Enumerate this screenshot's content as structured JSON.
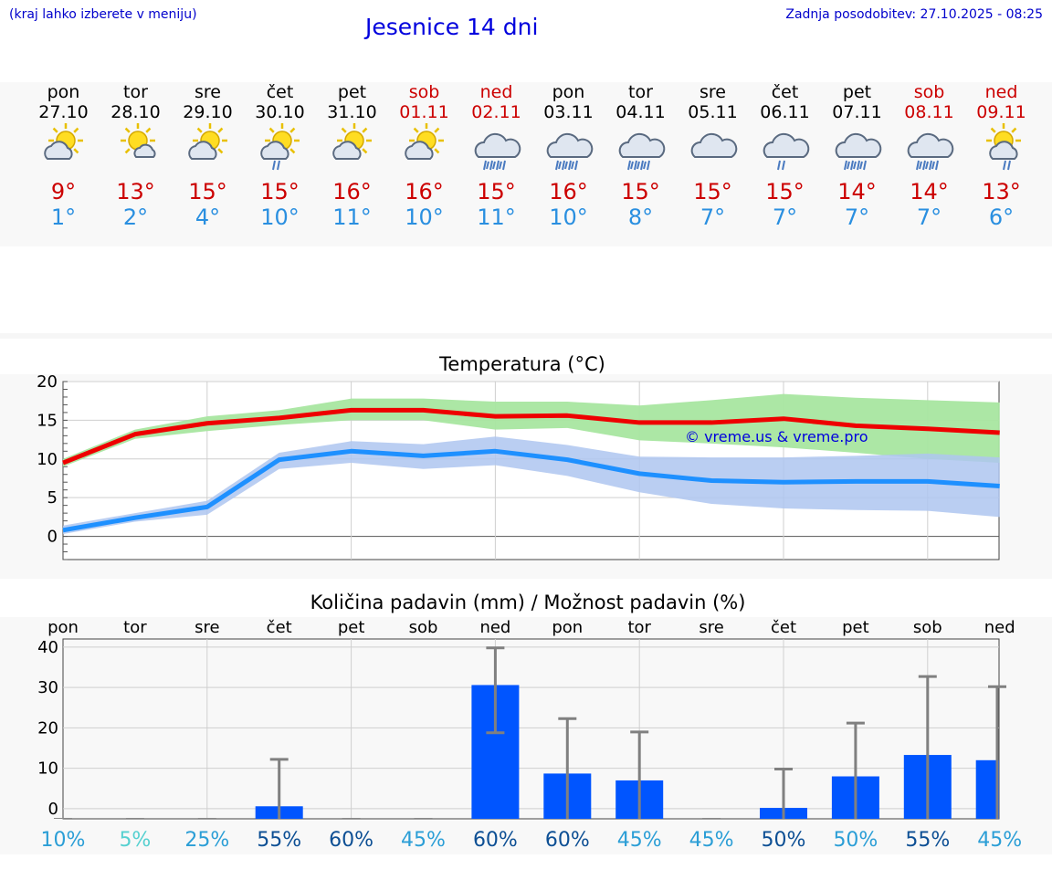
{
  "header": {
    "menu_note": "(kraj lahko izberete v meniju)",
    "title": "Jesenice 14 dni",
    "updated": "Zadnja posodobitev: 27.10.2025 - 08:25"
  },
  "colors": {
    "tmax": "#cc0000",
    "tmin": "#2a8fe0",
    "max_line": "#ee0000",
    "min_line": "#1e90ff",
    "max_band": "#a8e6a0",
    "min_band": "#aec6f0",
    "bar": "#0055ff",
    "error": "#808080",
    "title": "#0000dd"
  },
  "days": [
    {
      "name": "pon",
      "date": "27.10",
      "weekend": false,
      "icon": "sun-cloud-icon",
      "tmax": "9°",
      "tmin": "1°"
    },
    {
      "name": "tor",
      "date": "28.10",
      "weekend": false,
      "icon": "sun-small-cloud-icon",
      "tmax": "13°",
      "tmin": "2°"
    },
    {
      "name": "sre",
      "date": "29.10",
      "weekend": false,
      "icon": "sun-cloud-icon",
      "tmax": "15°",
      "tmin": "4°"
    },
    {
      "name": "čet",
      "date": "30.10",
      "weekend": false,
      "icon": "sun-cloud-rain-icon",
      "tmax": "15°",
      "tmin": "10°"
    },
    {
      "name": "pet",
      "date": "31.10",
      "weekend": false,
      "icon": "sun-cloud-icon",
      "tmax": "16°",
      "tmin": "11°"
    },
    {
      "name": "sob",
      "date": "01.11",
      "weekend": true,
      "icon": "sun-cloud-icon",
      "tmax": "16°",
      "tmin": "10°"
    },
    {
      "name": "ned",
      "date": "02.11",
      "weekend": true,
      "icon": "cloud-heavy-rain-icon",
      "tmax": "15°",
      "tmin": "11°"
    },
    {
      "name": "pon",
      "date": "03.11",
      "weekend": false,
      "icon": "cloud-heavy-rain-icon",
      "tmax": "16°",
      "tmin": "10°"
    },
    {
      "name": "tor",
      "date": "04.11",
      "weekend": false,
      "icon": "cloud-heavy-rain-icon",
      "tmax": "15°",
      "tmin": "8°"
    },
    {
      "name": "sre",
      "date": "05.11",
      "weekend": false,
      "icon": "cloud-icon",
      "tmax": "15°",
      "tmin": "7°"
    },
    {
      "name": "čet",
      "date": "06.11",
      "weekend": false,
      "icon": "cloud-light-rain-icon",
      "tmax": "15°",
      "tmin": "7°"
    },
    {
      "name": "pet",
      "date": "07.11",
      "weekend": false,
      "icon": "cloud-heavy-rain-icon",
      "tmax": "14°",
      "tmin": "7°"
    },
    {
      "name": "sob",
      "date": "08.11",
      "weekend": true,
      "icon": "cloud-heavy-rain-icon",
      "tmax": "14°",
      "tmin": "7°"
    },
    {
      "name": "ned",
      "date": "09.11",
      "weekend": true,
      "icon": "sun-cloud-light-rain-icon",
      "tmax": "13°",
      "tmin": "6°"
    }
  ],
  "chart_data": [
    {
      "type": "line",
      "title": "Temperatura (°C)",
      "watermark": "© vreme.us & vreme.pro",
      "ylim": [
        -3,
        20
      ],
      "yticks": [
        0,
        5,
        10,
        15,
        20
      ],
      "grid": true,
      "x": [
        0,
        1,
        2,
        3,
        4,
        5,
        6,
        7,
        8,
        9,
        10,
        11,
        12,
        13
      ],
      "series": [
        {
          "role": "max",
          "values": [
            9.5,
            13.2,
            14.6,
            15.3,
            16.3,
            16.3,
            15.5,
            15.6,
            14.7,
            14.7,
            15.2,
            14.3,
            13.9,
            13.4
          ],
          "low": [
            9.0,
            12.6,
            13.6,
            14.4,
            15.0,
            15.0,
            13.8,
            14.0,
            12.4,
            12.0,
            11.5,
            10.8,
            10.0,
            9.5
          ],
          "high": [
            10.0,
            13.8,
            15.5,
            16.3,
            17.8,
            17.8,
            17.4,
            17.4,
            16.9,
            17.6,
            18.4,
            17.9,
            17.6,
            17.3
          ]
        },
        {
          "role": "min",
          "values": [
            0.8,
            2.4,
            3.8,
            9.9,
            11.0,
            10.4,
            11.0,
            9.9,
            8.1,
            7.2,
            7.0,
            7.1,
            7.1,
            6.5
          ],
          "low": [
            0.3,
            1.9,
            2.8,
            8.7,
            9.5,
            8.7,
            9.2,
            7.8,
            5.7,
            4.2,
            3.6,
            3.4,
            3.3,
            2.5
          ],
          "high": [
            1.4,
            3.0,
            4.6,
            10.8,
            12.3,
            11.9,
            12.9,
            11.8,
            10.3,
            10.2,
            10.2,
            10.4,
            10.7,
            10.2
          ]
        }
      ]
    },
    {
      "type": "bar",
      "title": "Količina padavin (mm) / Možnost padavin (%)",
      "categories": [
        "pon",
        "tor",
        "sre",
        "čet",
        "pet",
        "sob",
        "ned",
        "pon",
        "tor",
        "sre",
        "čet",
        "pet",
        "sob",
        "ned"
      ],
      "ylim": [
        -2.5,
        42
      ],
      "yticks": [
        0,
        10,
        20,
        30,
        40
      ],
      "grid": true,
      "values": [
        0,
        0,
        0,
        0.6,
        0,
        0,
        30.6,
        8.7,
        7.0,
        0,
        0.2,
        8.0,
        13.3,
        12.0
      ],
      "error_high": [
        0,
        0,
        0,
        12.2,
        0,
        0,
        39.8,
        22.3,
        19.0,
        0,
        9.8,
        21.2,
        32.7,
        30.2
      ],
      "error_low": [
        0,
        0,
        0,
        0,
        0,
        0,
        18.8,
        0,
        0,
        0,
        0,
        0,
        0,
        0
      ],
      "probability": [
        "10%",
        "5%",
        "25%",
        "55%",
        "60%",
        "45%",
        "60%",
        "60%",
        "45%",
        "45%",
        "50%",
        "50%",
        "55%",
        "45%"
      ],
      "probability_colors": [
        "#2b9ed6",
        "#55d0d0",
        "#2b9ed6",
        "#0d4f94",
        "#0d4f94",
        "#2b9ed6",
        "#0d4f94",
        "#0d4f94",
        "#2b9ed6",
        "#2b9ed6",
        "#0d4f94",
        "#2b9ed6",
        "#0d4f94",
        "#2b9ed6"
      ]
    }
  ]
}
